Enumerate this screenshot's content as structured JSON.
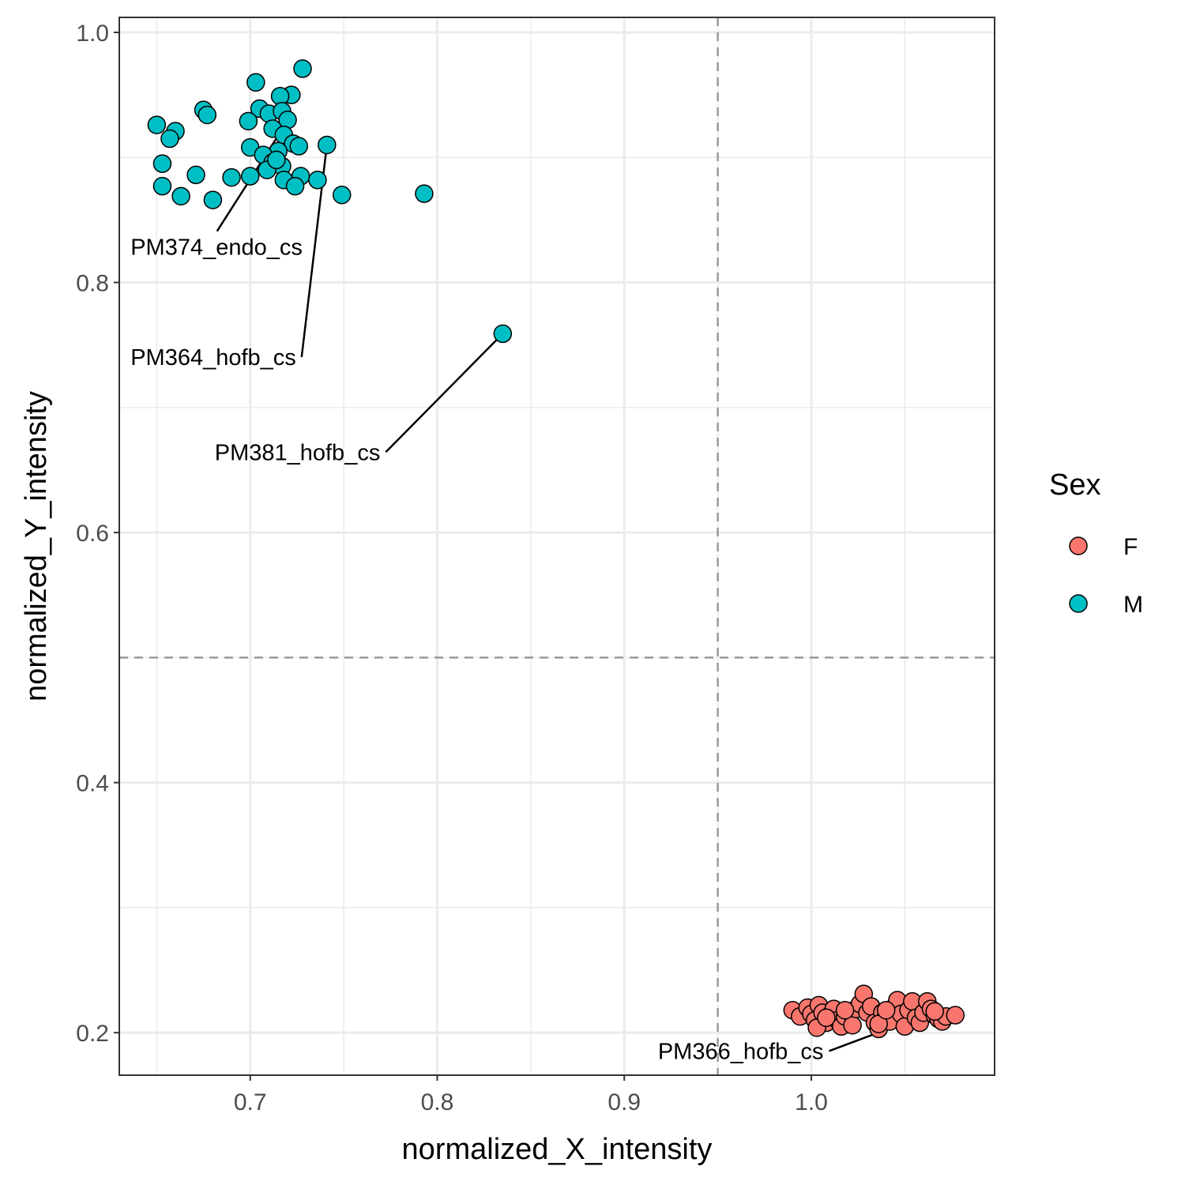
{
  "chart_data": {
    "type": "scatter",
    "xlabel": "normalized_X_intensity",
    "ylabel": "normalized_Y_intensity",
    "xlim": [
      0.63,
      1.098
    ],
    "ylim": [
      0.166,
      1.012
    ],
    "x_ticks": [
      0.7,
      0.8,
      0.9,
      1.0
    ],
    "x_tick_labels": [
      "0.7",
      "0.8",
      "0.9",
      "1.0"
    ],
    "y_ticks": [
      0.2,
      0.4,
      0.6,
      0.8,
      1.0
    ],
    "y_tick_labels": [
      "0.2",
      "0.4",
      "0.6",
      "0.8",
      "1.0"
    ],
    "grid": true,
    "reference_lines": {
      "vertical_x": 0.95,
      "horizontal_y": 0.5,
      "style": "dashed",
      "color": "#999999"
    },
    "legend": {
      "title": "Sex",
      "placement": "right"
    },
    "series": [
      {
        "name": "F",
        "color": "#F8766D",
        "points": [
          [
            0.99,
            0.218
          ],
          [
            0.994,
            0.213
          ],
          [
            0.998,
            0.22
          ],
          [
            1.0,
            0.215
          ],
          [
            1.002,
            0.21
          ],
          [
            1.004,
            0.222
          ],
          [
            1.006,
            0.216
          ],
          [
            1.008,
            0.208
          ],
          [
            1.01,
            0.214
          ],
          [
            1.003,
            0.204
          ],
          [
            1.012,
            0.219
          ],
          [
            1.014,
            0.21
          ],
          [
            1.016,
            0.205
          ],
          [
            1.018,
            0.213
          ],
          [
            1.02,
            0.217
          ],
          [
            1.022,
            0.206
          ],
          [
            1.024,
            0.219
          ],
          [
            1.026,
            0.223
          ],
          [
            1.028,
            0.231
          ],
          [
            1.03,
            0.216
          ],
          [
            1.032,
            0.221
          ],
          [
            1.034,
            0.208
          ],
          [
            1.036,
            0.203
          ],
          [
            1.038,
            0.216
          ],
          [
            1.04,
            0.213
          ],
          [
            1.042,
            0.209
          ],
          [
            1.044,
            0.22
          ],
          [
            1.046,
            0.226
          ],
          [
            1.048,
            0.215
          ],
          [
            1.05,
            0.205
          ],
          [
            1.052,
            0.218
          ],
          [
            1.054,
            0.225
          ],
          [
            1.056,
            0.212
          ],
          [
            1.058,
            0.208
          ],
          [
            1.06,
            0.216
          ],
          [
            1.062,
            0.225
          ],
          [
            1.064,
            0.219
          ],
          [
            1.066,
            0.214
          ],
          [
            1.068,
            0.211
          ],
          [
            1.07,
            0.209
          ],
          [
            1.072,
            0.213
          ],
          [
            1.077,
            0.214
          ],
          [
            1.008,
            0.212
          ],
          [
            1.018,
            0.218
          ],
          [
            1.036,
            0.207
          ],
          [
            1.04,
            0.218
          ],
          [
            1.066,
            0.217
          ]
        ]
      },
      {
        "name": "M",
        "color": "#00BFC4",
        "points": [
          [
            0.728,
            0.971
          ],
          [
            0.703,
            0.96
          ],
          [
            0.722,
            0.95
          ],
          [
            0.716,
            0.949
          ],
          [
            0.675,
            0.938
          ],
          [
            0.677,
            0.934
          ],
          [
            0.705,
            0.939
          ],
          [
            0.71,
            0.935
          ],
          [
            0.717,
            0.937
          ],
          [
            0.699,
            0.929
          ],
          [
            0.72,
            0.93
          ],
          [
            0.712,
            0.923
          ],
          [
            0.65,
            0.926
          ],
          [
            0.66,
            0.921
          ],
          [
            0.657,
            0.915
          ],
          [
            0.718,
            0.918
          ],
          [
            0.723,
            0.911
          ],
          [
            0.741,
            0.91
          ],
          [
            0.726,
            0.909
          ],
          [
            0.7,
            0.908
          ],
          [
            0.715,
            0.905
          ],
          [
            0.707,
            0.902
          ],
          [
            0.653,
            0.895
          ],
          [
            0.712,
            0.896
          ],
          [
            0.717,
            0.893
          ],
          [
            0.709,
            0.89
          ],
          [
            0.671,
            0.886
          ],
          [
            0.69,
            0.884
          ],
          [
            0.7,
            0.885
          ],
          [
            0.727,
            0.885
          ],
          [
            0.718,
            0.882
          ],
          [
            0.736,
            0.882
          ],
          [
            0.653,
            0.877
          ],
          [
            0.724,
            0.877
          ],
          [
            0.663,
            0.869
          ],
          [
            0.749,
            0.87
          ],
          [
            0.793,
            0.871
          ],
          [
            0.68,
            0.866
          ],
          [
            0.835,
            0.759
          ],
          [
            0.714,
            0.898
          ]
        ]
      }
    ],
    "annotations": [
      {
        "label": "PM374_endo_cs",
        "point": [
          0.716,
          0.92
        ],
        "text_x": 0.636,
        "text_y": 0.822
      },
      {
        "label": "PM364_hofb_cs",
        "point": [
          0.741,
          0.91
        ],
        "text_x": 0.636,
        "text_y": 0.734
      },
      {
        "label": "PM381_hofb_cs",
        "point": [
          0.835,
          0.759
        ],
        "text_x": 0.681,
        "text_y": 0.658
      },
      {
        "label": "PM366_hofb_cs",
        "point": [
          1.066,
          0.217
        ],
        "text_x": 0.918,
        "text_y": 0.179
      }
    ]
  }
}
